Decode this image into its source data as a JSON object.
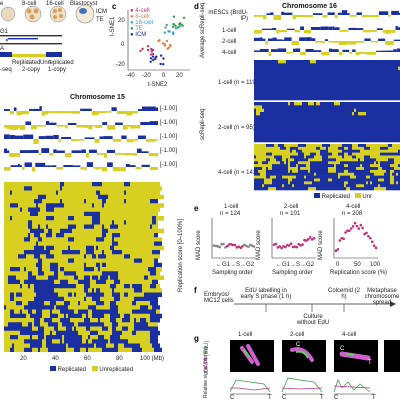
{
  "panel_a": {
    "stages": [
      "e",
      "8-cell",
      "16-cell",
      "Blastocyst"
    ],
    "icm": "ICM",
    "te": "TE",
    "g1": "G1",
    "dna": "A",
    "phases": [
      "Replicated",
      "Unreplicated"
    ],
    "copy_labels": [
      "-seq",
      "2-copy",
      "1-copy"
    ]
  },
  "panel_b": {
    "title": "Chromosome 15",
    "track_scale": "[-1.00]",
    "track_scale_top": "[-1.00]",
    "axis_label": "Replication score [0–100%]",
    "x_ticks": [
      "20",
      "40",
      "60",
      "80",
      "100 (Mb)"
    ],
    "legend": [
      "Replicated",
      "Unreplicated"
    ]
  },
  "panel_c": {
    "label": "c",
    "legend": [
      "4-cell",
      "8-cell",
      "16-cell",
      "TE",
      "ICM"
    ],
    "xlabel": "t-SNE2",
    "ylabel": "t-SNE1",
    "x_ticks": [
      "-40",
      "-20",
      "0",
      "20"
    ],
    "y_ticks": [
      "20",
      "0",
      "-20"
    ]
  },
  "panel_d": {
    "label": "d",
    "title": "Chromosome 16",
    "tracks": [
      "mESCs (BrdU-IP)",
      "1-cell",
      "2-cell",
      "4-cell"
    ],
    "avg_label": "Average scRepli-seq",
    "side_label": "scRepli-seq",
    "heat_labels": [
      "1-cell (n = 119)",
      "2-cell (n = 95)",
      "4-cell (n = 143)"
    ],
    "legend": [
      "Replicated",
      "Unr"
    ]
  },
  "panel_e": {
    "label": "e",
    "plots": [
      {
        "title": "1-cell",
        "n": "n = 124",
        "xlabel": "Sampling order"
      },
      {
        "title": "2-cell",
        "n": "n = 101",
        "xlabel": "Sampling order"
      },
      {
        "title": "4-cell",
        "n": "n = 208",
        "xlabel": "Replication score (%)"
      }
    ],
    "ylabel": "MAD score",
    "y_ticks": [
      "0.8",
      "0.6",
      "0.4",
      "0.2"
    ],
    "phase_labels": [
      "G1",
      "S",
      "G2"
    ],
    "x_ticks_4cell": [
      "0",
      "50",
      "100"
    ]
  },
  "panel_f": {
    "label": "f",
    "steps": [
      "Embryos/ MC12 cells",
      "EdU labelling in early S phase (1 h)",
      "Culture without EdU",
      "Colcemid (2 h)",
      "Metaphase chromosome spread"
    ]
  },
  "panel_g": {
    "label": "g",
    "titles": [
      "1-cell",
      "2-cell",
      "4-cell"
    ],
    "dapi": "DAPI",
    "edu": "EdU",
    "ylabel": "Relative signal intensity",
    "ct": [
      "C",
      "T"
    ],
    "c_marks": [
      "C",
      "C",
      "T"
    ]
  },
  "colors": {
    "blue": "#1a2fa0",
    "yellow": "#d8d020",
    "pink": "#c0307a",
    "green": "#3aa050",
    "red": "#d03040",
    "gray": "#888888"
  }
}
